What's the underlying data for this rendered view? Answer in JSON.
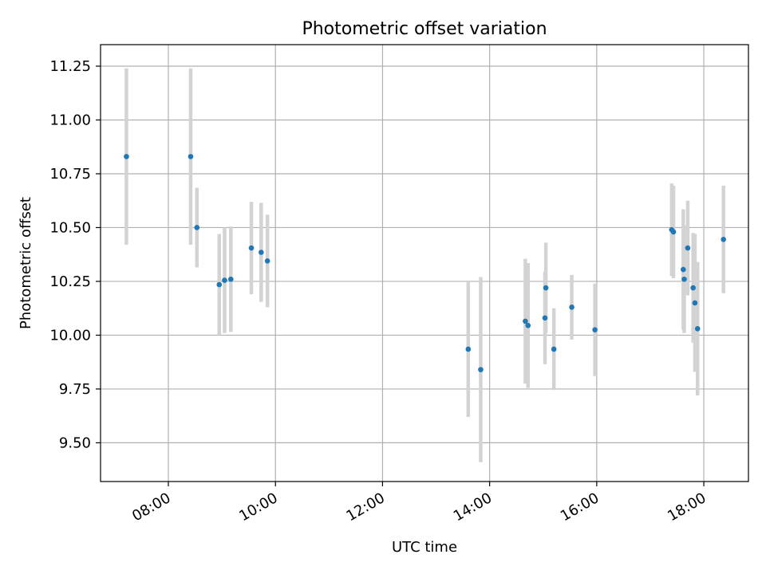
{
  "chart_data": {
    "type": "scatter",
    "title": "Photometric offset variation",
    "xlabel": "UTC time",
    "ylabel": "Photometric offset",
    "xlim": [
      "06:44",
      "18:50"
    ],
    "ylim": [
      9.32,
      11.35
    ],
    "x_ticks": [
      "08:00",
      "10:00",
      "12:00",
      "14:00",
      "16:00",
      "18:00"
    ],
    "y_ticks": [
      "9.50",
      "9.75",
      "10.00",
      "10.25",
      "10.50",
      "10.75",
      "11.00",
      "11.25"
    ],
    "grid": true,
    "marker_color": "#1f77b4",
    "errorbar_color": "#d3d3d3",
    "points": [
      {
        "x": "07:13",
        "y": 10.83,
        "err": 0.41
      },
      {
        "x": "08:25",
        "y": 10.83,
        "err": 0.41
      },
      {
        "x": "08:32",
        "y": 10.5,
        "err": 0.185
      },
      {
        "x": "08:57",
        "y": 10.235,
        "err": 0.235
      },
      {
        "x": "09:03",
        "y": 10.255,
        "err": 0.245
      },
      {
        "x": "09:10",
        "y": 10.26,
        "err": 0.245
      },
      {
        "x": "09:33",
        "y": 10.405,
        "err": 0.215
      },
      {
        "x": "09:44",
        "y": 10.385,
        "err": 0.23
      },
      {
        "x": "09:51",
        "y": 10.345,
        "err": 0.215
      },
      {
        "x": "13:36",
        "y": 9.935,
        "err": 0.315
      },
      {
        "x": "13:50",
        "y": 9.84,
        "err": 0.43
      },
      {
        "x": "14:40",
        "y": 10.065,
        "err": 0.29
      },
      {
        "x": "14:43",
        "y": 10.045,
        "err": 0.29
      },
      {
        "x": "15:02",
        "y": 10.08,
        "err": 0.215
      },
      {
        "x": "15:03",
        "y": 10.22,
        "err": 0.21
      },
      {
        "x": "15:12",
        "y": 9.935,
        "err": 0.19
      },
      {
        "x": "15:32",
        "y": 10.13,
        "err": 0.15
      },
      {
        "x": "15:58",
        "y": 10.025,
        "err": 0.215
      },
      {
        "x": "17:24",
        "y": 10.49,
        "err": 0.215
      },
      {
        "x": "17:26",
        "y": 10.48,
        "err": 0.215
      },
      {
        "x": "17:37",
        "y": 10.305,
        "err": 0.28
      },
      {
        "x": "17:38",
        "y": 10.26,
        "err": 0.25
      },
      {
        "x": "17:42",
        "y": 10.405,
        "err": 0.22
      },
      {
        "x": "17:48",
        "y": 10.22,
        "err": 0.255
      },
      {
        "x": "17:50",
        "y": 10.15,
        "err": 0.32
      },
      {
        "x": "17:53",
        "y": 10.03,
        "err": 0.31
      },
      {
        "x": "18:22",
        "y": 10.445,
        "err": 0.25
      }
    ]
  }
}
